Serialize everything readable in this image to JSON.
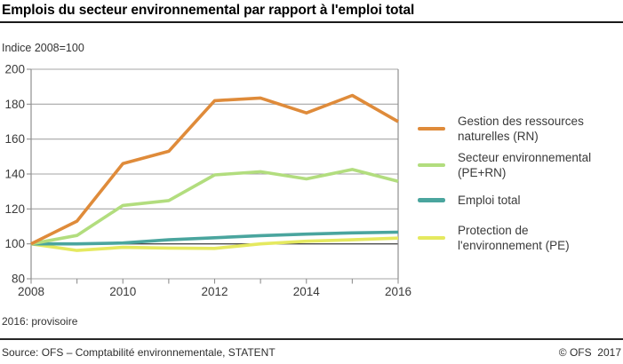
{
  "page": {
    "title": "Emplois du secteur environnemental par rapport à l'emploi total",
    "subtitle": "Indice 2008=100",
    "footnote": "2016: provisoire",
    "source": "Source: OFS – Comptabilité environnementale, STATENT",
    "copyright": "© OFS  2017"
  },
  "colors": {
    "grid": "#a6a6a6",
    "grid_baseline": "#4d4d4d",
    "axis": "#8f8f8f",
    "tick_text": "#3a3a3a",
    "rn": "#df8b3a",
    "pe_rn": "#b2dd7e",
    "total": "#4aa59e",
    "pe": "#e5e95f"
  },
  "chart_data": {
    "type": "line",
    "title": "Emplois du secteur environnemental par rapport à l'emploi total",
    "ylabel": "Indice 2008=100",
    "xlabel": "",
    "x": [
      2008,
      2009,
      2010,
      2011,
      2012,
      2013,
      2014,
      2015,
      2016
    ],
    "x_tick_labels": [
      "2008",
      "2010",
      "2012",
      "2014",
      "2016"
    ],
    "y_ticks": [
      80,
      100,
      120,
      140,
      160,
      180,
      200
    ],
    "ylim": [
      80,
      200
    ],
    "xlim": [
      2008,
      2016
    ],
    "baseline_y": 100,
    "grid": "horizontal",
    "legend_position": "right",
    "series": [
      {
        "key": "rn",
        "name": "Gestion des ressources naturelles (RN)",
        "label_lines": [
          "Gestion des ressources",
          "naturelles (RN)"
        ],
        "color": "#df8b3a",
        "values": [
          100,
          113,
          146,
          153,
          182,
          183.5,
          175,
          185,
          170
        ]
      },
      {
        "key": "pe_rn",
        "name": "Secteur environnemental (PE+RN)",
        "label_lines": [
          "Secteur environnemental",
          "(PE+RN)"
        ],
        "color": "#b2dd7e",
        "values": [
          100,
          104.8,
          122,
          124.8,
          139.5,
          141.3,
          137.2,
          142.6,
          135.8
        ]
      },
      {
        "key": "total",
        "name": "Emploi total",
        "label_lines": [
          "Emploi total"
        ],
        "color": "#4aa59e",
        "values": [
          100,
          100,
          100.5,
          102.3,
          103.5,
          104.7,
          105.6,
          106.3,
          106.7
        ]
      },
      {
        "key": "pe",
        "name": "Protection de l'environnement (PE)",
        "label_lines": [
          "Protection de",
          "l'environnement (PE)"
        ],
        "color": "#e5e95f",
        "values": [
          100,
          96.2,
          98,
          97.6,
          97.4,
          100,
          101.5,
          102.3,
          103.3
        ]
      }
    ]
  }
}
